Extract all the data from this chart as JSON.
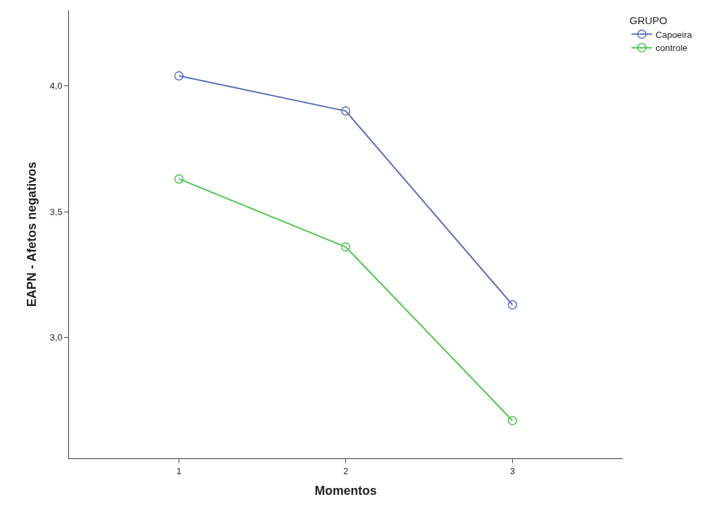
{
  "chart_data": {
    "type": "line",
    "xlabel": "Momentos",
    "ylabel": "EAPN - Afetos negativos",
    "legend_title": "GRUPO",
    "x": [
      1,
      2,
      3
    ],
    "series": [
      {
        "name": "Capoeira",
        "color": "#5a6cbc",
        "values": [
          4.04,
          3.9,
          3.13
        ]
      },
      {
        "name": "controle",
        "color": "#4cc64c",
        "values": [
          3.63,
          3.36,
          2.67
        ]
      }
    ],
    "xlim": [
      0.34,
      3.66
    ],
    "xticks": [
      1,
      2,
      3
    ],
    "ylim": [
      2.52,
      4.3
    ],
    "yticks": [
      {
        "value": 3.0,
        "label": "3,0"
      },
      {
        "value": 3.5,
        "label": "3,5"
      },
      {
        "value": 4.0,
        "label": "4,0"
      }
    ],
    "legend": "top right",
    "marker": "circle",
    "line_style": "solid"
  }
}
